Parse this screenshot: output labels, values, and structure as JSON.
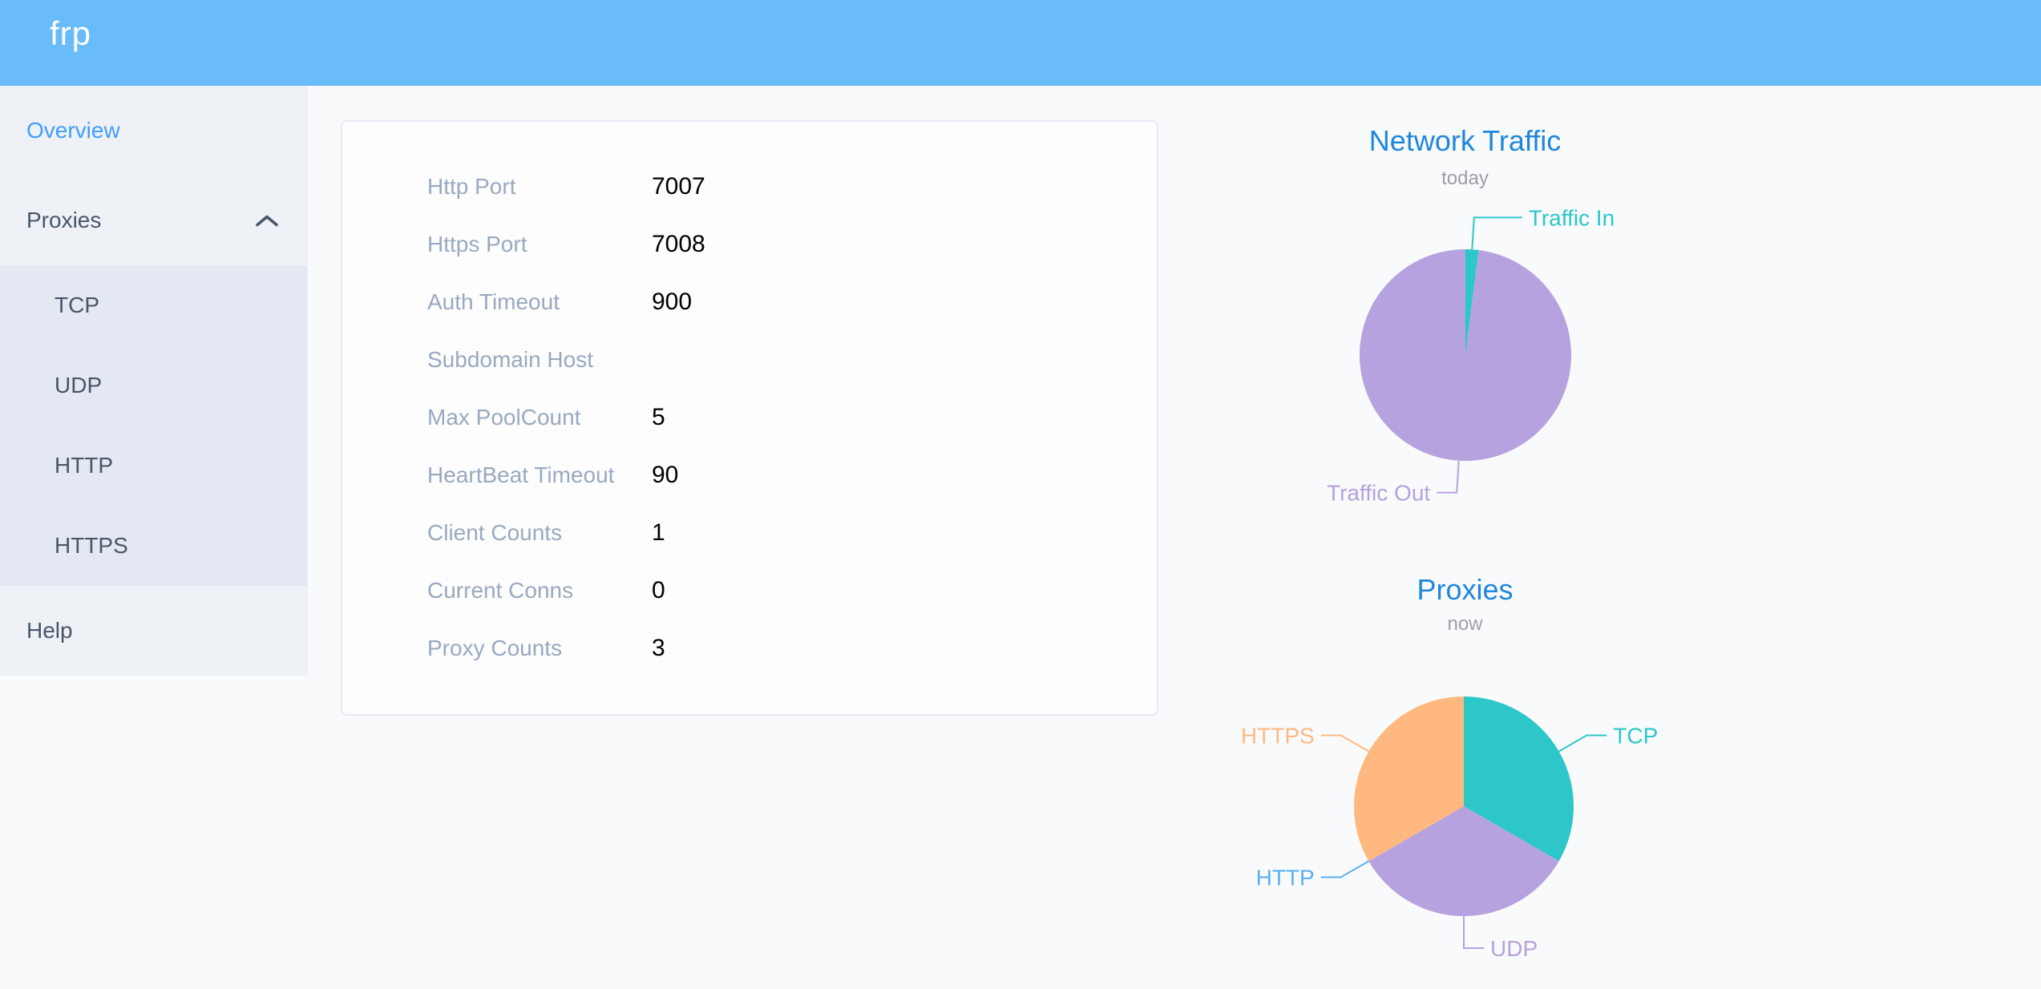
{
  "colors": {
    "header_bg": "#69bbfa",
    "active_menu_text": "#409eff",
    "sidebar_text": "#475669",
    "label_gray": "#99a9bf",
    "chart_title_blue": "#1f87db",
    "pie_teal": "#2ec7c9",
    "pie_purple": "#b6a2de",
    "pie_blue": "#5ab1ef",
    "pie_orange": "#ffb980"
  },
  "header": {
    "logo": "frp"
  },
  "sidebar": {
    "items": [
      {
        "label": "Overview",
        "active": true
      },
      {
        "label": "Proxies",
        "expanded": true,
        "children": [
          "TCP",
          "UDP",
          "HTTP",
          "HTTPS"
        ]
      },
      {
        "label": "Help"
      }
    ]
  },
  "overview": {
    "rows": [
      {
        "label": "Http Port",
        "value": "7007"
      },
      {
        "label": "Https Port",
        "value": "7008"
      },
      {
        "label": "Auth Timeout",
        "value": "900"
      },
      {
        "label": "Subdomain Host",
        "value": ""
      },
      {
        "label": "Max PoolCount",
        "value": "5"
      },
      {
        "label": "HeartBeat Timeout",
        "value": "90"
      },
      {
        "label": "Client Counts",
        "value": "1"
      },
      {
        "label": "Current Conns",
        "value": "0"
      },
      {
        "label": "Proxy Counts",
        "value": "3"
      }
    ]
  },
  "chart_data": [
    {
      "type": "pie",
      "title": "Network Traffic",
      "subtitle": "today",
      "legend_position": "callout-labels",
      "slices": [
        {
          "name": "Traffic In",
          "value": 2,
          "color": "#2ec7c9"
        },
        {
          "name": "Traffic Out",
          "value": 98,
          "color": "#b6a2de"
        }
      ]
    },
    {
      "type": "pie",
      "title": "Proxies",
      "subtitle": "now",
      "legend_position": "callout-labels",
      "slices": [
        {
          "name": "TCP",
          "value": 1,
          "color": "#2ec7c9"
        },
        {
          "name": "UDP",
          "value": 1,
          "color": "#b6a2de"
        },
        {
          "name": "HTTP",
          "value": 0,
          "color": "#5ab1ef"
        },
        {
          "name": "HTTPS",
          "value": 1,
          "color": "#ffb980"
        }
      ]
    }
  ]
}
